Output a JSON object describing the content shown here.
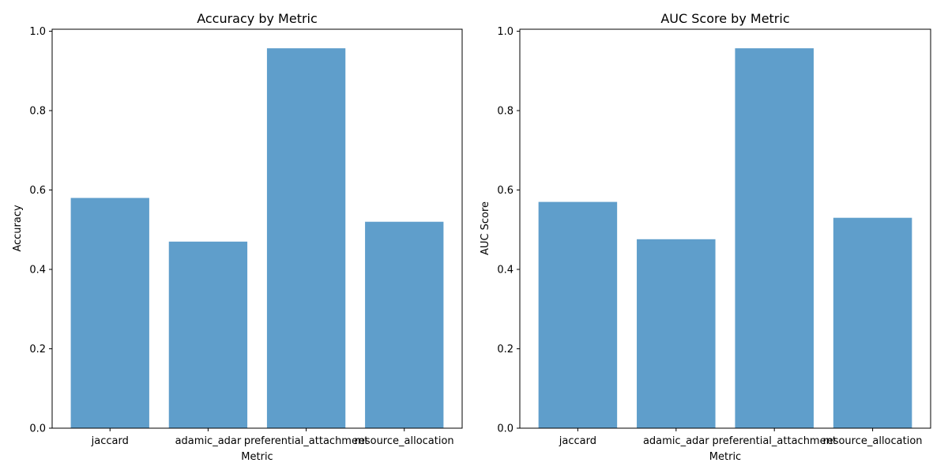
{
  "chart_data": [
    {
      "type": "bar",
      "title": "Accuracy by Metric",
      "xlabel": "Metric",
      "ylabel": "Accuracy",
      "categories": [
        "jaccard",
        "adamic_adar",
        "preferential_attachment",
        "resource_allocation"
      ],
      "values": [
        0.58,
        0.47,
        0.957,
        0.52
      ],
      "ylim": [
        0,
        1.005
      ],
      "yticks": [
        "0.0",
        "0.2",
        "0.4",
        "0.6",
        "0.8",
        "1.0"
      ],
      "grid": false,
      "bar_color": "#5f9ecb"
    },
    {
      "type": "bar",
      "title": "AUC Score by Metric",
      "xlabel": "Metric",
      "ylabel": "AUC Score",
      "categories": [
        "jaccard",
        "adamic_adar",
        "preferential_attachment",
        "resource_allocation"
      ],
      "values": [
        0.57,
        0.476,
        0.957,
        0.53
      ],
      "ylim": [
        0,
        1.005
      ],
      "yticks": [
        "0.0",
        "0.2",
        "0.4",
        "0.6",
        "0.8",
        "1.0"
      ],
      "grid": false,
      "bar_color": "#5f9ecb"
    }
  ]
}
